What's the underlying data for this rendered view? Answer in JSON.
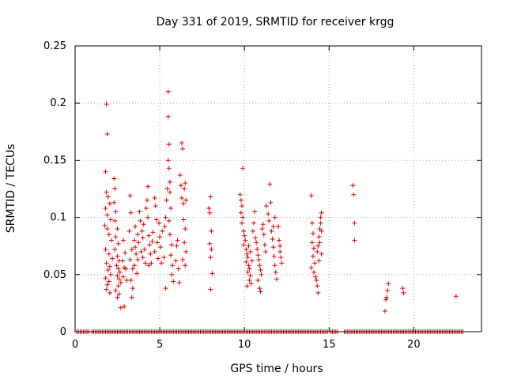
{
  "chart_data": {
    "type": "scatter",
    "title": "Day 331 of 2019, SRMTID for receiver krgg",
    "xlabel": "GPS time / hours",
    "ylabel": "SRMTID / TECUs",
    "xlim": [
      0,
      24
    ],
    "ylim": [
      0,
      0.25
    ],
    "xticks": [
      0,
      5,
      10,
      15,
      20
    ],
    "yticks": [
      0,
      0.05,
      0.1,
      0.15,
      0.2,
      0.25
    ],
    "xtick_labels": [
      "0",
      "5",
      "10",
      "15",
      "20"
    ],
    "ytick_labels": [
      "0",
      "0.05",
      "0.1",
      "0.15",
      "0.2",
      "0.25"
    ],
    "grid": true,
    "marker": "+",
    "color": "#dd0000",
    "series": [
      {
        "name": "SRMTID",
        "points": [
          [
            1.85,
            0.199
          ],
          [
            1.9,
            0.173
          ],
          [
            1.8,
            0.14
          ],
          [
            1.85,
            0.122
          ],
          [
            1.95,
            0.118
          ],
          [
            2.05,
            0.112
          ],
          [
            1.8,
            0.108
          ],
          [
            1.9,
            0.102
          ],
          [
            2.1,
            0.098
          ],
          [
            1.75,
            0.093
          ],
          [
            1.9,
            0.09
          ],
          [
            2.0,
            0.085
          ],
          [
            2.15,
            0.08
          ],
          [
            1.8,
            0.072
          ],
          [
            2.0,
            0.068
          ],
          [
            2.2,
            0.064
          ],
          [
            1.85,
            0.06
          ],
          [
            2.05,
            0.057
          ],
          [
            1.95,
            0.054
          ],
          [
            2.1,
            0.05
          ],
          [
            1.8,
            0.047
          ],
          [
            2.0,
            0.044
          ],
          [
            1.9,
            0.041
          ],
          [
            1.85,
            0.037
          ],
          [
            2.05,
            0.034
          ],
          [
            2.3,
            0.134
          ],
          [
            2.35,
            0.125
          ],
          [
            2.3,
            0.113
          ],
          [
            2.4,
            0.105
          ],
          [
            2.35,
            0.097
          ],
          [
            2.5,
            0.09
          ],
          [
            2.4,
            0.083
          ],
          [
            2.55,
            0.077
          ],
          [
            2.35,
            0.072
          ],
          [
            2.5,
            0.066
          ],
          [
            2.6,
            0.062
          ],
          [
            2.45,
            0.058
          ],
          [
            2.55,
            0.055
          ],
          [
            2.65,
            0.052
          ],
          [
            2.5,
            0.049
          ],
          [
            2.6,
            0.046
          ],
          [
            2.7,
            0.043
          ],
          [
            2.55,
            0.04
          ],
          [
            2.4,
            0.036
          ],
          [
            2.6,
            0.033
          ],
          [
            2.5,
            0.03
          ],
          [
            2.7,
            0.021
          ],
          [
            2.85,
            0.048
          ],
          [
            2.9,
            0.056
          ],
          [
            2.8,
            0.062
          ],
          [
            2.95,
            0.069
          ],
          [
            2.85,
            0.08
          ],
          [
            2.9,
            0.022
          ],
          [
            3.0,
            0.055
          ],
          [
            3.05,
            0.045
          ],
          [
            3.25,
            0.119
          ],
          [
            3.3,
            0.104
          ],
          [
            3.2,
            0.088
          ],
          [
            3.35,
            0.072
          ],
          [
            3.25,
            0.063
          ],
          [
            3.4,
            0.055
          ],
          [
            3.3,
            0.045
          ],
          [
            3.4,
            0.038
          ],
          [
            3.35,
            0.03
          ],
          [
            3.5,
            0.08
          ],
          [
            3.55,
            0.092
          ],
          [
            3.6,
            0.068
          ],
          [
            3.5,
            0.058
          ],
          [
            3.65,
            0.051
          ],
          [
            3.55,
            0.074
          ],
          [
            3.7,
            0.085
          ],
          [
            3.75,
            0.078
          ],
          [
            3.8,
            0.105
          ],
          [
            3.85,
            0.097
          ],
          [
            3.7,
            0.063
          ],
          [
            3.9,
            0.07
          ],
          [
            3.95,
            0.088
          ],
          [
            4.0,
            0.082
          ],
          [
            4.05,
            0.094
          ],
          [
            4.0,
            0.065
          ],
          [
            4.1,
            0.072
          ],
          [
            4.15,
            0.06
          ],
          [
            4.2,
            0.108
          ],
          [
            4.25,
            0.115
          ],
          [
            4.3,
            0.127
          ],
          [
            4.3,
            0.1
          ],
          [
            4.35,
            0.084
          ],
          [
            4.4,
            0.076
          ],
          [
            4.45,
            0.068
          ],
          [
            4.35,
            0.058
          ],
          [
            4.5,
            0.06
          ],
          [
            4.55,
            0.079
          ],
          [
            4.6,
            0.087
          ],
          [
            4.7,
            0.117
          ],
          [
            4.75,
            0.11
          ],
          [
            4.8,
            0.098
          ],
          [
            4.85,
            0.078
          ],
          [
            4.7,
            0.07
          ],
          [
            4.9,
            0.064
          ],
          [
            4.95,
            0.095
          ],
          [
            5.0,
            0.083
          ],
          [
            5.05,
            0.074
          ],
          [
            5.1,
            0.06
          ],
          [
            5.15,
            0.088
          ],
          [
            5.25,
            0.065
          ],
          [
            5.35,
            0.038
          ],
          [
            5.3,
            0.092
          ],
          [
            5.35,
            0.1
          ],
          [
            5.4,
            0.115
          ],
          [
            5.45,
            0.125
          ],
          [
            5.5,
            0.21
          ],
          [
            5.5,
            0.188
          ],
          [
            5.55,
            0.164
          ],
          [
            5.5,
            0.15
          ],
          [
            5.55,
            0.143
          ],
          [
            5.6,
            0.131
          ],
          [
            5.6,
            0.122
          ],
          [
            5.65,
            0.108
          ],
          [
            5.55,
            0.097
          ],
          [
            5.6,
            0.085
          ],
          [
            5.7,
            0.076
          ],
          [
            5.65,
            0.067
          ],
          [
            5.75,
            0.058
          ],
          [
            5.7,
            0.05
          ],
          [
            5.8,
            0.044
          ],
          [
            5.95,
            0.062
          ],
          [
            6.0,
            0.075
          ],
          [
            6.05,
            0.08
          ],
          [
            6.1,
            0.055
          ],
          [
            6.15,
            0.043
          ],
          [
            6.2,
            0.137
          ],
          [
            6.25,
            0.128
          ],
          [
            6.3,
            0.165
          ],
          [
            6.35,
            0.16
          ],
          [
            6.3,
            0.117
          ],
          [
            6.4,
            0.112
          ],
          [
            6.45,
            0.125
          ],
          [
            6.5,
            0.13
          ],
          [
            6.55,
            0.115
          ],
          [
            6.4,
            0.098
          ],
          [
            6.5,
            0.09
          ],
          [
            6.45,
            0.078
          ],
          [
            6.55,
            0.07
          ],
          [
            6.35,
            0.063
          ],
          [
            6.5,
            0.058
          ],
          [
            7.9,
            0.108
          ],
          [
            7.95,
            0.104
          ],
          [
            8.0,
            0.118
          ],
          [
            8.05,
            0.088
          ],
          [
            7.95,
            0.077
          ],
          [
            8.05,
            0.072
          ],
          [
            8.0,
            0.065
          ],
          [
            8.1,
            0.051
          ],
          [
            8.0,
            0.037
          ],
          [
            9.75,
            0.12
          ],
          [
            9.8,
            0.115
          ],
          [
            9.85,
            0.11
          ],
          [
            9.9,
            0.143
          ],
          [
            9.8,
            0.104
          ],
          [
            9.9,
            0.1
          ],
          [
            9.85,
            0.095
          ],
          [
            9.95,
            0.088
          ],
          [
            10.0,
            0.084
          ],
          [
            10.05,
            0.08
          ],
          [
            9.95,
            0.076
          ],
          [
            10.1,
            0.072
          ],
          [
            10.15,
            0.068
          ],
          [
            10.2,
            0.065
          ],
          [
            10.1,
            0.061
          ],
          [
            10.25,
            0.058
          ],
          [
            10.3,
            0.055
          ],
          [
            10.2,
            0.052
          ],
          [
            10.35,
            0.049
          ],
          [
            10.3,
            0.045
          ],
          [
            10.4,
            0.042
          ],
          [
            10.15,
            0.04
          ],
          [
            10.25,
            0.075
          ],
          [
            10.35,
            0.07
          ],
          [
            10.45,
            0.062
          ],
          [
            10.5,
            0.088
          ],
          [
            10.55,
            0.095
          ],
          [
            10.6,
            0.105
          ],
          [
            10.65,
            0.082
          ],
          [
            10.7,
            0.078
          ],
          [
            10.75,
            0.072
          ],
          [
            10.8,
            0.067
          ],
          [
            10.85,
            0.063
          ],
          [
            10.9,
            0.058
          ],
          [
            10.95,
            0.054
          ],
          [
            11.0,
            0.05
          ],
          [
            10.8,
            0.045
          ],
          [
            10.9,
            0.038
          ],
          [
            10.95,
            0.035
          ],
          [
            11.05,
            0.09
          ],
          [
            11.1,
            0.094
          ],
          [
            11.15,
            0.085
          ],
          [
            11.2,
            0.076
          ],
          [
            11.25,
            0.07
          ],
          [
            11.3,
            0.11
          ],
          [
            11.4,
            0.103
          ],
          [
            11.45,
            0.097
          ],
          [
            11.5,
            0.129
          ],
          [
            11.55,
            0.113
          ],
          [
            11.6,
            0.088
          ],
          [
            11.65,
            0.081
          ],
          [
            11.7,
            0.074
          ],
          [
            11.75,
            0.066
          ],
          [
            11.8,
            0.058
          ],
          [
            11.85,
            0.052
          ],
          [
            11.9,
            0.046
          ],
          [
            11.7,
            0.092
          ],
          [
            11.8,
            0.1
          ],
          [
            12.0,
            0.092
          ],
          [
            12.05,
            0.08
          ],
          [
            12.1,
            0.075
          ],
          [
            12.15,
            0.065
          ],
          [
            12.2,
            0.06
          ],
          [
            12.1,
            0.07
          ],
          [
            13.95,
            0.119
          ],
          [
            14.0,
            0.095
          ],
          [
            14.05,
            0.086
          ],
          [
            14.0,
            0.078
          ],
          [
            14.1,
            0.073
          ],
          [
            14.05,
            0.066
          ],
          [
            14.15,
            0.06
          ],
          [
            13.95,
            0.056
          ],
          [
            14.1,
            0.052
          ],
          [
            14.2,
            0.048
          ],
          [
            14.25,
            0.045
          ],
          [
            14.3,
            0.04
          ],
          [
            14.35,
            0.034
          ],
          [
            14.3,
            0.07
          ],
          [
            14.35,
            0.075
          ],
          [
            14.4,
            0.083
          ],
          [
            14.45,
            0.09
          ],
          [
            14.5,
            0.1
          ],
          [
            14.55,
            0.104
          ],
          [
            14.5,
            0.095
          ],
          [
            14.55,
            0.088
          ],
          [
            14.45,
            0.078
          ],
          [
            14.55,
            0.068
          ],
          [
            14.4,
            0.062
          ],
          [
            16.4,
            0.128
          ],
          [
            16.45,
            0.12
          ],
          [
            16.5,
            0.095
          ],
          [
            16.5,
            0.08
          ],
          [
            18.3,
            0.018
          ],
          [
            18.35,
            0.028
          ],
          [
            18.4,
            0.03
          ],
          [
            18.5,
            0.042
          ],
          [
            18.45,
            0.036
          ],
          [
            19.35,
            0.038
          ],
          [
            19.4,
            0.034
          ],
          [
            22.5,
            0.031
          ]
        ],
        "zero_runs": [
          [
            0.1,
            0.8
          ],
          [
            1.0,
            1.4
          ],
          [
            1.5,
            6.9
          ],
          [
            7.0,
            14.9
          ],
          [
            15.1,
            15.5
          ],
          [
            15.9,
            22.9
          ]
        ]
      }
    ]
  }
}
